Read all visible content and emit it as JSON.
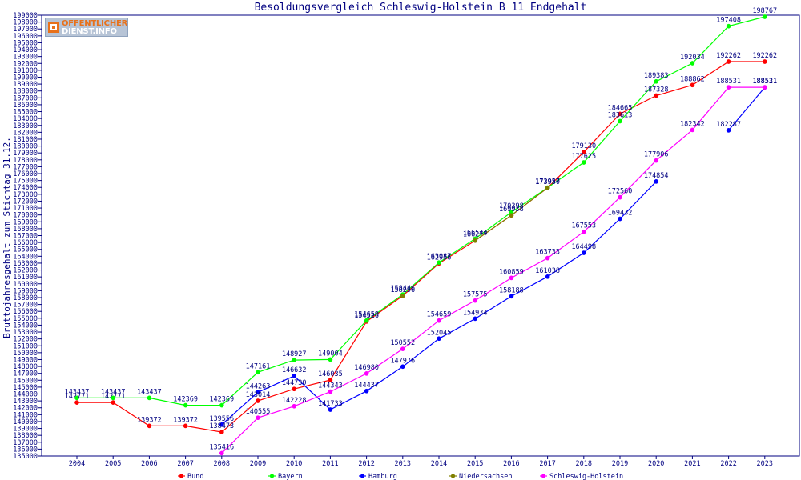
{
  "logo": {
    "line1": "OFFENTLICHER",
    "line2": "DIENST.INFO"
  },
  "chart_data": {
    "type": "line",
    "title": "Besoldungsvergleich Schleswig-Holstein B 11 Endgehalt",
    "ylabel": "Bruttojahresgehalt zum Stichtag 31.12.",
    "xlabel": "",
    "x": [
      "2004",
      "2005",
      "2006",
      "2007",
      "2008",
      "2009",
      "2010",
      "2011",
      "2012",
      "2013",
      "2014",
      "2015",
      "2016",
      "2017",
      "2018",
      "2019",
      "2020",
      "2021",
      "2022",
      "2023"
    ],
    "ylim": [
      135000,
      199000
    ],
    "ytick_step": 1000,
    "grid": false,
    "legend_position": "bottom",
    "series": [
      {
        "name": "Bund",
        "color": "#ff0000",
        "values": [
          142771,
          142771,
          139372,
          139372,
          138473,
          143014,
          144730,
          146035,
          154526,
          158256,
          162956,
          166277,
          169938,
          173930,
          179130,
          184665,
          187328,
          188862,
          192262,
          192262
        ],
        "labels": [
          "142771",
          "142771",
          "139372",
          "139372",
          "138473",
          "143014",
          "144730",
          "146035",
          "154526",
          "158256",
          "162956",
          "166277",
          "169938",
          "173930",
          "179130",
          "184665",
          "187328",
          "188862",
          "192262",
          "192262"
        ]
      },
      {
        "name": "Bayern",
        "color": "#00ff00",
        "values": [
          143437,
          143437,
          143437,
          142369,
          142369,
          147161,
          148927,
          149004,
          154659,
          158446,
          163087,
          166544,
          170398,
          173957,
          177625,
          183613,
          189383,
          192034,
          197408,
          198767
        ],
        "labels": [
          "143437",
          "143437",
          "143437",
          "142369",
          "142369",
          "147161",
          "148927",
          "149004",
          "154659",
          "158446",
          "163087",
          "166544",
          "170398",
          "173957",
          "177625",
          "183613",
          "189383",
          "192034",
          "197408",
          "198767"
        ]
      },
      {
        "name": "Hamburg",
        "color": "#0000ff",
        "values": [
          null,
          null,
          null,
          null,
          139556,
          144263,
          146632,
          141733,
          144437,
          147976,
          152045,
          154934,
          158188,
          161038,
          164498,
          169432,
          174854,
          null,
          182287,
          188521
        ],
        "labels": [
          "",
          "",
          "",
          "",
          "139556",
          "144263",
          "146632",
          "141733",
          "144437",
          "147976",
          "152045",
          "154934",
          "158188",
          "161038",
          "164498",
          "169432",
          "174854",
          "",
          "182287",
          "188521"
        ]
      },
      {
        "name": "Niedersachsen",
        "color": "#808000",
        "values": [
          null,
          null,
          null,
          null,
          null,
          null,
          null,
          null,
          null,
          158256,
          null,
          166277,
          169938,
          173930,
          null,
          null,
          null,
          null,
          null,
          null
        ],
        "labels": []
      },
      {
        "name": "Schleswig-Holstein",
        "color": "#ff00ff",
        "values": [
          null,
          null,
          null,
          null,
          135416,
          140555,
          142228,
          144343,
          146980,
          150552,
          154659,
          157575,
          160859,
          163733,
          167553,
          172560,
          177906,
          182342,
          188531,
          188531
        ],
        "labels": [
          "",
          "",
          "",
          "",
          "135416",
          "140555",
          "142228",
          "144343",
          "146980",
          "150552",
          "154659",
          "157575",
          "160859",
          "163733",
          "167553",
          "172560",
          "177906",
          "182342",
          "188531",
          "188531"
        ]
      }
    ]
  }
}
